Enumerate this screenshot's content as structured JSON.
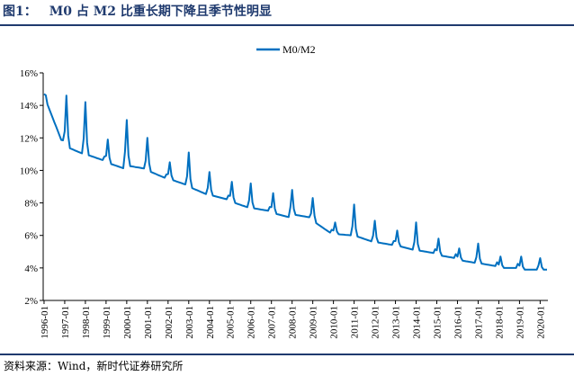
{
  "figure": {
    "label": "图1：",
    "title": "M0 占 M2 比重长期下降且季节性明显",
    "source": "资料来源：Wind，新时代证券研究所"
  },
  "chart_data": {
    "type": "line",
    "title": "M0 占 M2 比重长期下降且季节性明显",
    "xlabel": "",
    "ylabel": "",
    "legend": "top-center",
    "grid": false,
    "color": "#0070c0",
    "ylim": [
      2,
      16
    ],
    "yticks": [
      "2%",
      "4%",
      "6%",
      "8%",
      "10%",
      "12%",
      "14%",
      "16%"
    ],
    "ytick_values": [
      2,
      4,
      6,
      8,
      10,
      12,
      14,
      16
    ],
    "xticks": [
      "1996-01",
      "1997-01",
      "1998-01",
      "1999-01",
      "2000-01",
      "2001-01",
      "2002-01",
      "2003-01",
      "2004-01",
      "2005-01",
      "2006-01",
      "2007-01",
      "2008-01",
      "2009-01",
      "2010-01",
      "2011-01",
      "2012-01",
      "2013-01",
      "2014-01",
      "2015-01",
      "2016-01",
      "2017-01",
      "2018-01",
      "2019-01",
      "2020-01"
    ],
    "xlim": [
      "1996-01",
      "2020-05"
    ],
    "series": [
      {
        "name": "M0/M2",
        "base_value_by_year": [
          {
            "year": 1996,
            "start": 14.6,
            "end": 11.6
          },
          {
            "year": 1997,
            "start": 11.5,
            "end": 11.0
          },
          {
            "year": 1998,
            "start": 11.0,
            "end": 10.6
          },
          {
            "year": 1999,
            "start": 10.5,
            "end": 10.1
          },
          {
            "year": 2000,
            "start": 10.3,
            "end": 10.1
          },
          {
            "year": 2001,
            "start": 10.0,
            "end": 9.5
          },
          {
            "year": 2002,
            "start": 9.5,
            "end": 9.1
          },
          {
            "year": 2003,
            "start": 9.0,
            "end": 8.5
          },
          {
            "year": 2004,
            "start": 8.5,
            "end": 8.2
          },
          {
            "year": 2005,
            "start": 8.1,
            "end": 7.7
          },
          {
            "year": 2006,
            "start": 7.7,
            "end": 7.5
          },
          {
            "year": 2007,
            "start": 7.4,
            "end": 7.1
          },
          {
            "year": 2008,
            "start": 7.3,
            "end": 7.1
          },
          {
            "year": 2009,
            "start": 6.9,
            "end": 6.1
          },
          {
            "year": 2010,
            "start": 6.1,
            "end": 6.0
          },
          {
            "year": 2011,
            "start": 6.0,
            "end": 5.6
          },
          {
            "year": 2012,
            "start": 5.6,
            "end": 5.4
          },
          {
            "year": 2013,
            "start": 5.4,
            "end": 5.1
          },
          {
            "year": 2014,
            "start": 5.1,
            "end": 4.9
          },
          {
            "year": 2015,
            "start": 4.8,
            "end": 4.6
          },
          {
            "year": 2016,
            "start": 4.5,
            "end": 4.3
          },
          {
            "year": 2017,
            "start": 4.3,
            "end": 4.1
          },
          {
            "year": 2018,
            "start": 4.0,
            "end": 4.0
          },
          {
            "year": 2019,
            "start": 3.9,
            "end": 3.9
          },
          {
            "year": 2020,
            "start": 3.9,
            "end": 3.9
          }
        ],
        "peaks": [
          {
            "date": "1996-01",
            "value": 14.7
          },
          {
            "date": "1997-02",
            "value": 14.6
          },
          {
            "date": "1998-01",
            "value": 14.2
          },
          {
            "date": "1999-02",
            "value": 11.9
          },
          {
            "date": "2000-01",
            "value": 13.1
          },
          {
            "date": "2001-01",
            "value": 12.0
          },
          {
            "date": "2002-02",
            "value": 10.5
          },
          {
            "date": "2003-01",
            "value": 11.1
          },
          {
            "date": "2004-01",
            "value": 9.9
          },
          {
            "date": "2005-02",
            "value": 9.3
          },
          {
            "date": "2006-01",
            "value": 9.2
          },
          {
            "date": "2007-02",
            "value": 8.6
          },
          {
            "date": "2008-01",
            "value": 8.8
          },
          {
            "date": "2009-01",
            "value": 8.3
          },
          {
            "date": "2010-02",
            "value": 6.8
          },
          {
            "date": "2011-01",
            "value": 7.9
          },
          {
            "date": "2012-01",
            "value": 6.9
          },
          {
            "date": "2013-02",
            "value": 6.3
          },
          {
            "date": "2014-01",
            "value": 6.8
          },
          {
            "date": "2015-02",
            "value": 5.8
          },
          {
            "date": "2016-02",
            "value": 5.2
          },
          {
            "date": "2017-01",
            "value": 5.5
          },
          {
            "date": "2018-02",
            "value": 4.7
          },
          {
            "date": "2019-02",
            "value": 4.7
          },
          {
            "date": "2020-01",
            "value": 4.6
          }
        ],
        "last": {
          "date": "2020-05",
          "value": 3.9
        }
      }
    ]
  }
}
